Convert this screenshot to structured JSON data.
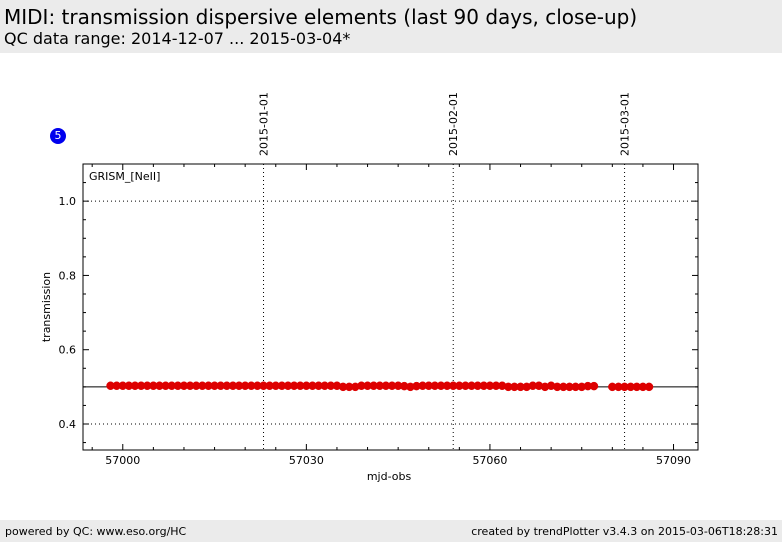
{
  "header": {
    "title": "MIDI: transmission dispersive elements (last 90 days, close-up)",
    "subtitle": "QC data range: 2014-12-07 ... 2015-03-04*"
  },
  "badge": {
    "label": "5",
    "color": "#0000ee"
  },
  "footer": {
    "left": "powered by QC: www.eso.org/HC",
    "right": "created by trendPlotter v3.4.3 on 2015-03-06T18:28:31"
  },
  "chart_data": {
    "type": "scatter",
    "panel_label": "GRISM_[NeII]",
    "xlabel": "mjd-obs",
    "ylabel": "transmission",
    "xlim": [
      56993.5,
      57094
    ],
    "ylim": [
      0.33,
      1.1
    ],
    "x_ticks": [
      "57000",
      "57030",
      "57060",
      "57090"
    ],
    "x_tick_values": [
      57000,
      57030,
      57060,
      57090
    ],
    "y_ticks": [
      "0.4",
      "0.6",
      "0.8",
      "1.0"
    ],
    "y_tick_values": [
      0.4,
      0.6,
      0.8,
      1.0
    ],
    "y_dotted_lines": [
      0.4,
      1.0
    ],
    "reference_line": 0.5,
    "date_markers": [
      {
        "label": "2015-01-01",
        "x": 57023
      },
      {
        "label": "2015-02-01",
        "x": 57054
      },
      {
        "label": "2015-03-01",
        "x": 57082
      }
    ],
    "marker_color": "#dd0000",
    "grid": false,
    "series": [
      {
        "values": [
          [
            56998,
            0.503
          ],
          [
            56999,
            0.503
          ],
          [
            57000,
            0.503
          ],
          [
            57001,
            0.503
          ],
          [
            57002,
            0.503
          ],
          [
            57003,
            0.503
          ],
          [
            57004,
            0.503
          ],
          [
            57005,
            0.503
          ],
          [
            57006,
            0.503
          ],
          [
            57007,
            0.503
          ],
          [
            57008,
            0.503
          ],
          [
            57009,
            0.503
          ],
          [
            57010,
            0.503
          ],
          [
            57011,
            0.503
          ],
          [
            57012,
            0.503
          ],
          [
            57013,
            0.503
          ],
          [
            57014,
            0.503
          ],
          [
            57015,
            0.503
          ],
          [
            57016,
            0.503
          ],
          [
            57017,
            0.503
          ],
          [
            57018,
            0.503
          ],
          [
            57019,
            0.503
          ],
          [
            57020,
            0.503
          ],
          [
            57021,
            0.503
          ],
          [
            57022,
            0.503
          ],
          [
            57023,
            0.503
          ],
          [
            57024,
            0.503
          ],
          [
            57025,
            0.503
          ],
          [
            57026,
            0.503
          ],
          [
            57027,
            0.503
          ],
          [
            57028,
            0.503
          ],
          [
            57029,
            0.503
          ],
          [
            57030,
            0.503
          ],
          [
            57031,
            0.503
          ],
          [
            57032,
            0.503
          ],
          [
            57033,
            0.503
          ],
          [
            57034,
            0.503
          ],
          [
            57035,
            0.503
          ],
          [
            57036,
            0.5
          ],
          [
            57037,
            0.5
          ],
          [
            57038,
            0.5
          ],
          [
            57039,
            0.503
          ],
          [
            57040,
            0.503
          ],
          [
            57041,
            0.503
          ],
          [
            57042,
            0.503
          ],
          [
            57043,
            0.503
          ],
          [
            57044,
            0.503
          ],
          [
            57045,
            0.503
          ],
          [
            57046,
            0.502
          ],
          [
            57047,
            0.5
          ],
          [
            57048,
            0.502
          ],
          [
            57049,
            0.503
          ],
          [
            57050,
            0.503
          ],
          [
            57051,
            0.503
          ],
          [
            57052,
            0.503
          ],
          [
            57053,
            0.503
          ],
          [
            57054,
            0.503
          ],
          [
            57055,
            0.503
          ],
          [
            57056,
            0.503
          ],
          [
            57057,
            0.503
          ],
          [
            57058,
            0.503
          ],
          [
            57059,
            0.503
          ],
          [
            57060,
            0.503
          ],
          [
            57061,
            0.503
          ],
          [
            57062,
            0.503
          ],
          [
            57063,
            0.5
          ],
          [
            57064,
            0.5
          ],
          [
            57065,
            0.5
          ],
          [
            57066,
            0.5
          ],
          [
            57067,
            0.503
          ],
          [
            57068,
            0.503
          ],
          [
            57069,
            0.5
          ],
          [
            57070,
            0.503
          ],
          [
            57071,
            0.5
          ],
          [
            57072,
            0.5
          ],
          [
            57073,
            0.5
          ],
          [
            57074,
            0.5
          ],
          [
            57075,
            0.5
          ],
          [
            57076,
            0.502
          ],
          [
            57077,
            0.502
          ],
          [
            57080,
            0.5
          ],
          [
            57081,
            0.5
          ],
          [
            57082,
            0.5
          ],
          [
            57083,
            0.5
          ],
          [
            57084,
            0.5
          ],
          [
            57085,
            0.5
          ],
          [
            57086,
            0.5
          ]
        ]
      }
    ]
  }
}
